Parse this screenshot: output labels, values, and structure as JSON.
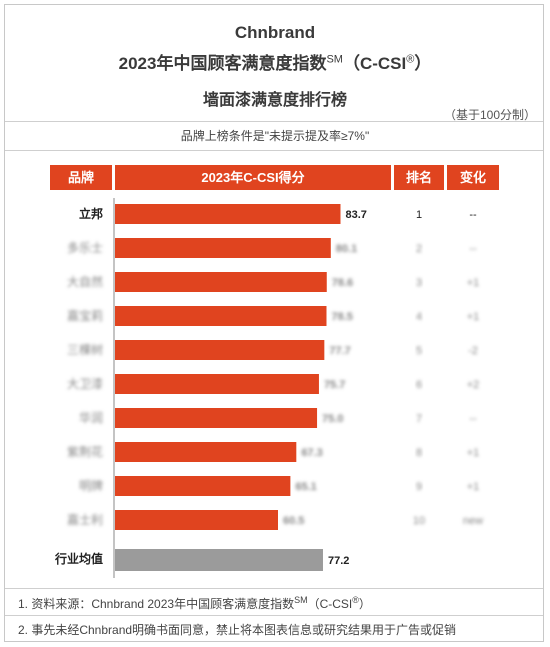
{
  "header": {
    "brand": "Chnbrand",
    "title_main": "2023年中国顾客满意度指数",
    "title_sup": "SM",
    "title_tail": "（C-CSI",
    "title_reg": "®",
    "title_close": "）",
    "subtitle": "墙面漆满意度排行榜",
    "scale_note": "（基于100分制）"
  },
  "condition": "品牌上榜条件是\"未提示提及率≥7%\"",
  "table_header": {
    "brand": "品牌",
    "score": "2023年C-CSI得分",
    "rank": "排名",
    "change": "变化"
  },
  "colors": {
    "accent": "#e0441f",
    "average": "#9b9b9b"
  },
  "chart_data": {
    "type": "bar",
    "orientation": "horizontal",
    "categories": [
      "立邦",
      "多乐士",
      "大自然",
      "嘉宝莉",
      "三棵树",
      "大卫漆",
      "华润",
      "紫荆花",
      "明牌",
      "嘉士利"
    ],
    "values": [
      83.7,
      80.1,
      78.6,
      78.5,
      77.7,
      75.7,
      75.0,
      67.3,
      65.1,
      60.5
    ],
    "value_labels": [
      "83.7",
      "80.1",
      "78.6",
      "78.5",
      "77.7",
      "75.7",
      "75.0",
      "67.3",
      "65.1",
      "60.5"
    ],
    "ranks": [
      "1",
      "2",
      "3",
      "4",
      "5",
      "6",
      "7",
      "8",
      "9",
      "10"
    ],
    "changes": [
      "--",
      "--",
      "+1",
      "+1",
      "-2",
      "+2",
      "--",
      "+1",
      "+1",
      "new"
    ],
    "blurred": [
      false,
      true,
      true,
      true,
      true,
      true,
      true,
      true,
      true,
      true
    ],
    "average": {
      "label": "行业均值",
      "value": 77.2,
      "value_label": "77.2"
    },
    "xlim": [
      0,
      100
    ]
  },
  "footnotes": {
    "f1_text": "1. 资料来源：Chnbrand 2023年中国顾客满意度指数",
    "f1_sup": "SM",
    "f1_tail": "（C-CSI",
    "f1_reg": "®",
    "f1_close": "）",
    "f2": "2. 事先未经Chnbrand明确书面同意，禁止将本图表信息或研究结果用于广告或促销"
  }
}
